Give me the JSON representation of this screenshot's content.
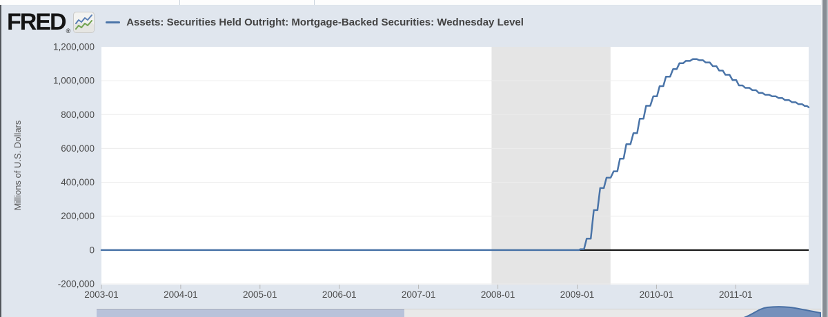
{
  "header": {
    "logo_text": "FRED",
    "logo_registered": "®",
    "legend_dash": "—",
    "series_title": "Assets: Securities Held Outright: Mortgage-Backed Securities: Wednesday Level"
  },
  "colors": {
    "line": "#4a74a8",
    "zero_line": "#000000",
    "recession_band": "#e5e5e5",
    "gridline": "#ececec",
    "plot_background": "#ffffff",
    "page_background": "#e0e6ee",
    "tick_text": "#4a4a4a",
    "mini_fill": "#7590bb",
    "mini_stroke": "#486fa4"
  },
  "chart_data": {
    "type": "line",
    "title": "Assets: Securities Held Outright: Mortgage-Backed Securities: Wednesday Level",
    "xlabel": "",
    "ylabel": "Millions of U.S. Dollars",
    "legend_position": "top",
    "grid": "horizontal-only",
    "xlim": [
      2003.0,
      2011.92
    ],
    "ylim": [
      -204000,
      1200000
    ],
    "x_ticks": [
      {
        "label": "2003-01",
        "value": 2003.0
      },
      {
        "label": "2004-01",
        "value": 2004.0
      },
      {
        "label": "2005-01",
        "value": 2005.0
      },
      {
        "label": "2006-01",
        "value": 2006.0
      },
      {
        "label": "2007-01",
        "value": 2007.0
      },
      {
        "label": "2008-01",
        "value": 2008.0
      },
      {
        "label": "2009-01",
        "value": 2009.0
      },
      {
        "label": "2010-01",
        "value": 2010.0
      },
      {
        "label": "2011-01",
        "value": 2011.0
      }
    ],
    "y_ticks": [
      {
        "label": "1,200,000",
        "value": 1200000
      },
      {
        "label": "1,000,000",
        "value": 1000000
      },
      {
        "label": "800,000",
        "value": 800000
      },
      {
        "label": "600,000",
        "value": 600000
      },
      {
        "label": "400,000",
        "value": 400000
      },
      {
        "label": "200,000",
        "value": 200000
      },
      {
        "label": "0",
        "value": 0
      },
      {
        "label": "-200,000",
        "value": -200000
      }
    ],
    "recession_band": {
      "start": 2007.92,
      "end": 2009.42
    },
    "series": [
      {
        "name": "Assets: Securities Held Outright: Mortgage-Backed Securities: Wednesday Level",
        "interpolation": "step-ramp",
        "points": [
          [
            2003.0,
            0
          ],
          [
            2009.0,
            0
          ],
          [
            2009.04,
            5000
          ],
          [
            2009.12,
            68000
          ],
          [
            2009.21,
            236000
          ],
          [
            2009.29,
            366000
          ],
          [
            2009.37,
            427000
          ],
          [
            2009.46,
            465000
          ],
          [
            2009.54,
            540000
          ],
          [
            2009.62,
            625000
          ],
          [
            2009.71,
            690000
          ],
          [
            2009.79,
            776000
          ],
          [
            2009.87,
            852000
          ],
          [
            2009.96,
            908000
          ],
          [
            2010.04,
            968000
          ],
          [
            2010.12,
            1024000
          ],
          [
            2010.21,
            1069000
          ],
          [
            2010.29,
            1103000
          ],
          [
            2010.37,
            1117000
          ],
          [
            2010.46,
            1128000
          ],
          [
            2010.54,
            1121000
          ],
          [
            2010.62,
            1108000
          ],
          [
            2010.71,
            1086000
          ],
          [
            2010.79,
            1060000
          ],
          [
            2010.87,
            1035000
          ],
          [
            2010.96,
            1004000
          ],
          [
            2011.04,
            972000
          ],
          [
            2011.12,
            958000
          ],
          [
            2011.21,
            944000
          ],
          [
            2011.29,
            928000
          ],
          [
            2011.37,
            917000
          ],
          [
            2011.46,
            908000
          ],
          [
            2011.54,
            898000
          ],
          [
            2011.62,
            886000
          ],
          [
            2011.71,
            873000
          ],
          [
            2011.79,
            862000
          ],
          [
            2011.87,
            851000
          ],
          [
            2011.92,
            843000
          ]
        ]
      }
    ]
  }
}
